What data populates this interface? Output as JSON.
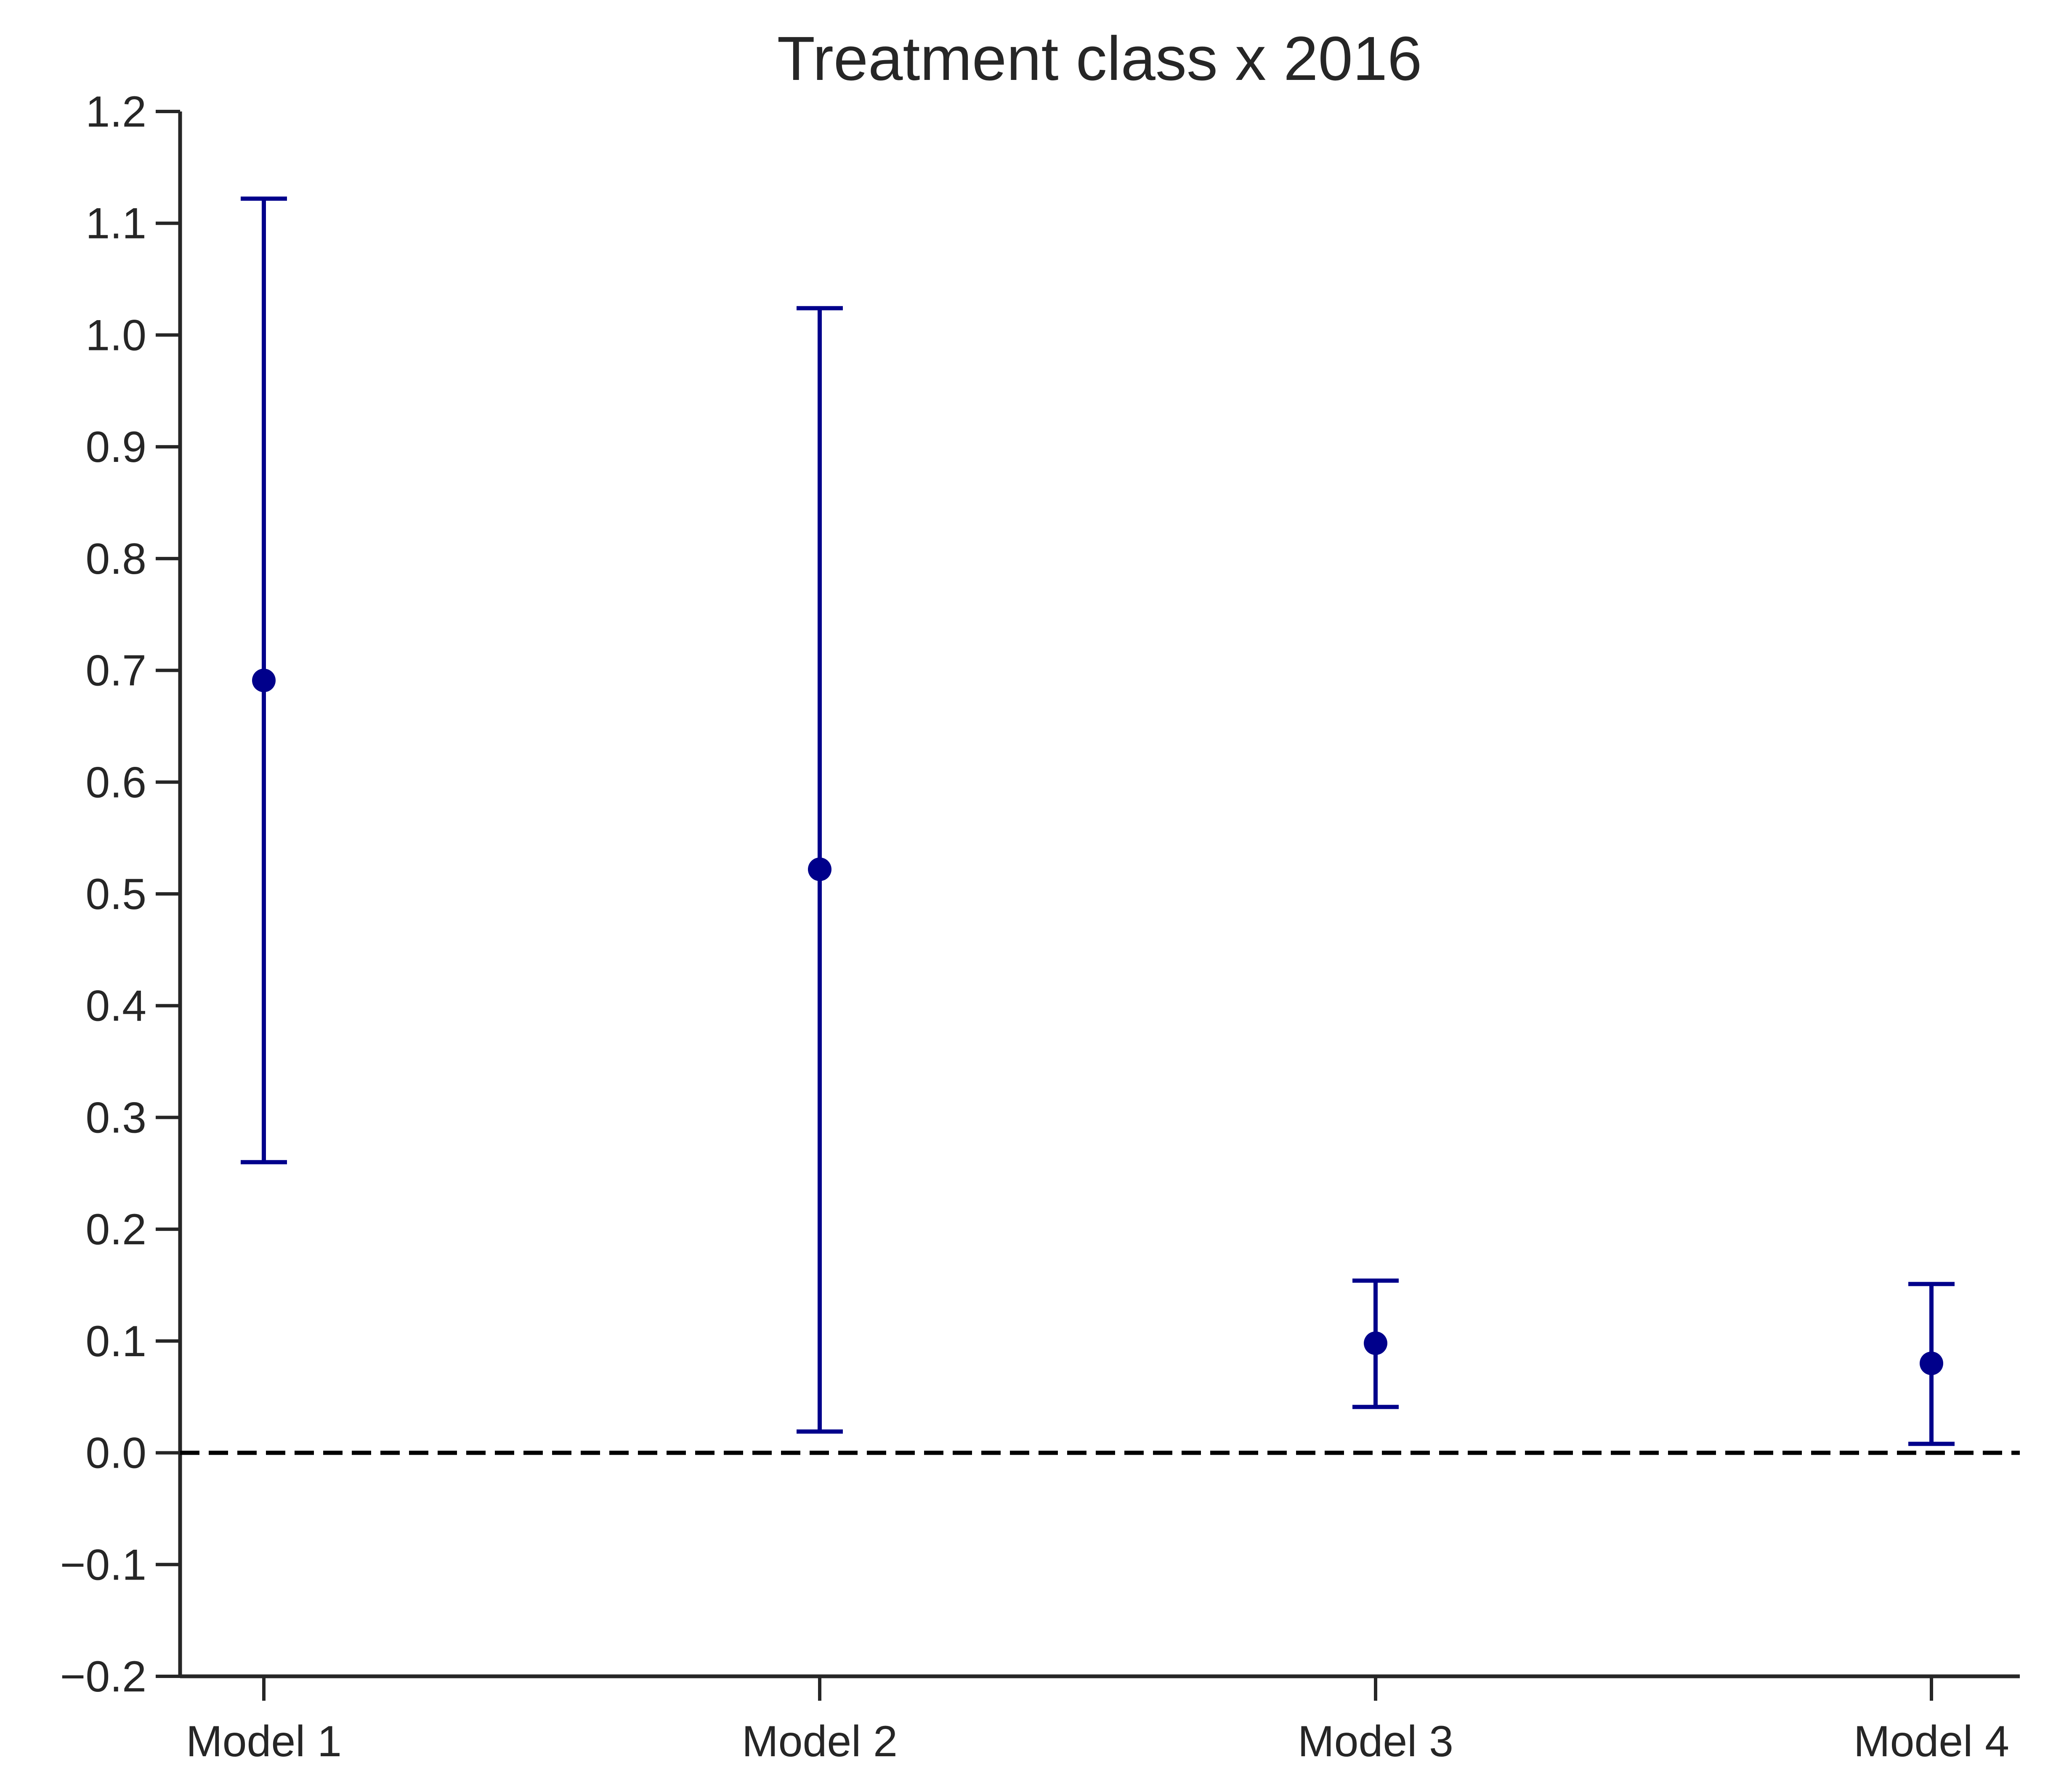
{
  "chart_data": {
    "type": "scatter",
    "title": "Treatment class x 2016",
    "xlabel": "",
    "ylabel": "",
    "categories": [
      "Model 1",
      "Model 2",
      "Model 3",
      "Model 4"
    ],
    "series": [
      {
        "estimates": [
          0.691,
          0.522,
          0.098,
          0.08
        ],
        "ci_lower": [
          0.26,
          0.019,
          0.041,
          0.008
        ],
        "ci_upper": [
          1.122,
          1.024,
          0.154,
          0.151
        ]
      }
    ],
    "ylim": [
      -0.2,
      1.2
    ],
    "yticks": [
      "−0.2",
      "−0.1",
      "0.0",
      "0.1",
      "0.2",
      "0.3",
      "0.4",
      "0.5",
      "0.6",
      "0.7",
      "0.8",
      "0.9",
      "1.0",
      "1.1",
      "1.2"
    ],
    "ytick_values": [
      -0.2,
      -0.1,
      0.0,
      0.1,
      0.2,
      0.3,
      0.4,
      0.5,
      0.6,
      0.7,
      0.8,
      0.9,
      1.0,
      1.1,
      1.2
    ],
    "reference_line": {
      "y": 0.0,
      "style": "dashed",
      "color": "#000000"
    },
    "marker_color": "#00008b",
    "axis_color": "#262626",
    "grid": false,
    "legend": "none"
  }
}
